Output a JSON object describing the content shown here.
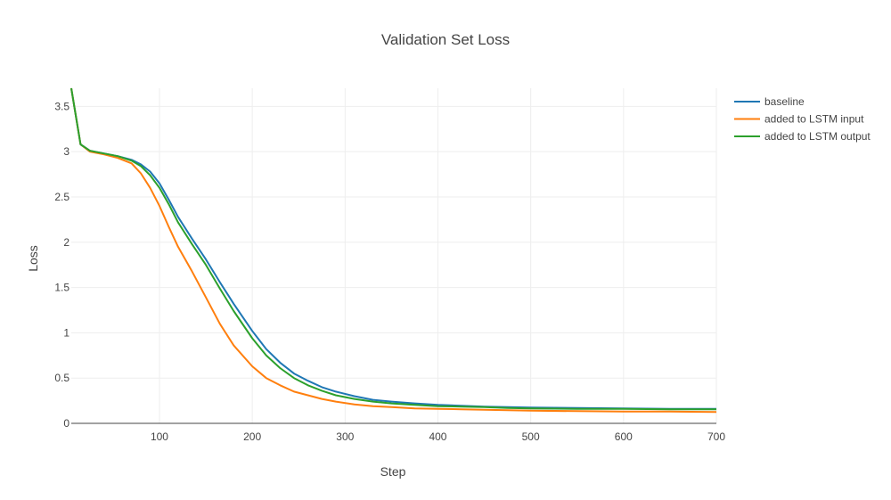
{
  "chart_data": {
    "type": "line",
    "title": "Validation Set Loss",
    "xlabel": "Step",
    "ylabel": "Loss",
    "xlim": [
      5,
      700
    ],
    "ylim": [
      0,
      3.7
    ],
    "x_ticks": [
      100,
      200,
      300,
      400,
      500,
      600,
      700
    ],
    "y_ticks": [
      0,
      0.5,
      1,
      1.5,
      2,
      2.5,
      3,
      3.5
    ],
    "x_tick_labels": [
      "100",
      "200",
      "300",
      "400",
      "500",
      "600",
      "700"
    ],
    "y_tick_labels": [
      "0",
      "0.5",
      "1",
      "1.5",
      "2",
      "2.5",
      "3",
      "3.5"
    ],
    "grid": true,
    "legend_position": "top-right",
    "x": [
      5,
      15,
      25,
      40,
      55,
      70,
      80,
      90,
      100,
      110,
      120,
      135,
      150,
      165,
      180,
      200,
      215,
      230,
      245,
      260,
      275,
      290,
      310,
      330,
      350,
      375,
      400,
      425,
      450,
      475,
      500,
      550,
      600,
      650,
      700
    ],
    "series": [
      {
        "name": "baseline",
        "color": "#1f77b4",
        "values": [
          3.7,
          3.08,
          3.01,
          2.98,
          2.95,
          2.91,
          2.86,
          2.78,
          2.65,
          2.47,
          2.28,
          2.04,
          1.81,
          1.56,
          1.32,
          1.02,
          0.82,
          0.67,
          0.55,
          0.47,
          0.4,
          0.35,
          0.3,
          0.26,
          0.24,
          0.22,
          0.205,
          0.195,
          0.185,
          0.18,
          0.175,
          0.17,
          0.165,
          0.16,
          0.16
        ]
      },
      {
        "name": "added to LSTM input",
        "color": "#ff7f0e",
        "values": [
          3.7,
          3.08,
          3.0,
          2.97,
          2.93,
          2.87,
          2.76,
          2.6,
          2.4,
          2.17,
          1.95,
          1.68,
          1.39,
          1.1,
          0.86,
          0.63,
          0.5,
          0.42,
          0.35,
          0.31,
          0.27,
          0.24,
          0.21,
          0.19,
          0.18,
          0.165,
          0.16,
          0.155,
          0.15,
          0.145,
          0.14,
          0.135,
          0.13,
          0.13,
          0.125
        ]
      },
      {
        "name": "added to LSTM output",
        "color": "#2ca02c",
        "values": [
          3.7,
          3.08,
          3.01,
          2.98,
          2.95,
          2.9,
          2.84,
          2.74,
          2.6,
          2.42,
          2.22,
          1.98,
          1.75,
          1.49,
          1.24,
          0.94,
          0.75,
          0.61,
          0.5,
          0.42,
          0.36,
          0.31,
          0.27,
          0.24,
          0.22,
          0.205,
          0.19,
          0.185,
          0.18,
          0.17,
          0.165,
          0.16,
          0.16,
          0.155,
          0.155
        ]
      }
    ]
  }
}
